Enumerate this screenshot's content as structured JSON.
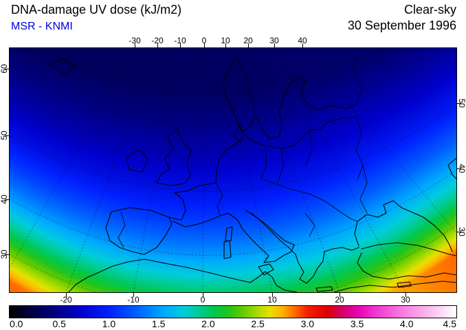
{
  "header": {
    "title": "DNA-damage UV dose (kJ/m2)",
    "source": "MSR - KNMI",
    "source_color": "#0000e0",
    "condition": "Clear-sky",
    "date": "30 September 1996"
  },
  "chart_data": {
    "type": "heatmap",
    "title": "DNA-damage UV dose (kJ/m2)",
    "subtitle": "MSR - KNMI",
    "condition": "Clear-sky",
    "date": "30 September 1996",
    "units": "kJ/m2",
    "region": "Europe / North Africa satellite view",
    "legend_position": "bottom",
    "grid": "dotted graticule, 10 degree spacing",
    "axes": {
      "top_lon_labels": [
        "-30",
        "-20",
        "-10",
        "0",
        "10",
        "20",
        "30",
        "40"
      ],
      "bottom_lon_labels": [
        "-20",
        "-10",
        "0",
        "10",
        "20",
        "30"
      ],
      "left_lat_labels": [
        "60",
        "50",
        "40",
        "30"
      ],
      "right_lat_labels": [
        "50",
        "40",
        "30"
      ]
    },
    "colorbar": {
      "min": 0.0,
      "max": 4.5,
      "tick_labels": [
        "0.0",
        "0.5",
        "1.0",
        "1.5",
        "2.0",
        "2.5",
        "3.0",
        "3.5",
        "4.0",
        "4.5"
      ],
      "stops": [
        [
          0.0,
          "#000000"
        ],
        [
          0.35,
          "#000066"
        ],
        [
          0.7,
          "#0000cc"
        ],
        [
          1.0,
          "#0022ff"
        ],
        [
          1.3,
          "#0066ff"
        ],
        [
          1.55,
          "#00aaff"
        ],
        [
          1.75,
          "#00ccdd"
        ],
        [
          1.9,
          "#00cc99"
        ],
        [
          2.05,
          "#00c853"
        ],
        [
          2.2,
          "#22c41e"
        ],
        [
          2.35,
          "#66cc00"
        ],
        [
          2.5,
          "#aadd00"
        ],
        [
          2.62,
          "#e8e000"
        ],
        [
          2.75,
          "#ffb300"
        ],
        [
          2.88,
          "#ff6600"
        ],
        [
          3.0,
          "#f42000"
        ],
        [
          3.2,
          "#e00000"
        ],
        [
          3.35,
          "#d4006a"
        ],
        [
          3.5,
          "#e800b0"
        ],
        [
          3.7,
          "#f23ad2"
        ],
        [
          3.95,
          "#f97ae0"
        ],
        [
          4.2,
          "#fbb5ec"
        ],
        [
          4.5,
          "#ffffff"
        ]
      ]
    },
    "field": {
      "description": "Approximate clear-sky DNA-damage UV dose (kJ/m2) read from the map colors; rows = latitudes, cols = longitudes",
      "lats": [
        65,
        60,
        55,
        50,
        45,
        40,
        35,
        30,
        25
      ],
      "lons": [
        -40,
        -30,
        -20,
        -10,
        0,
        10,
        20,
        30,
        40
      ],
      "values": [
        [
          0.32,
          0.32,
          0.32,
          0.33,
          0.33,
          0.33,
          0.34,
          0.35,
          0.36
        ],
        [
          0.44,
          0.44,
          0.45,
          0.45,
          0.46,
          0.47,
          0.48,
          0.5,
          0.52
        ],
        [
          0.6,
          0.6,
          0.61,
          0.62,
          0.62,
          0.64,
          0.66,
          0.68,
          0.7
        ],
        [
          0.84,
          0.84,
          0.84,
          0.85,
          0.86,
          0.87,
          0.89,
          0.92,
          0.95
        ],
        [
          1.15,
          1.14,
          1.13,
          1.13,
          1.14,
          1.16,
          1.18,
          1.21,
          1.25
        ],
        [
          1.52,
          1.5,
          1.48,
          1.47,
          1.48,
          1.5,
          1.52,
          1.56,
          1.6
        ],
        [
          1.96,
          1.92,
          1.88,
          1.86,
          1.86,
          1.87,
          1.84,
          1.88,
          1.95
        ],
        [
          2.45,
          2.4,
          2.33,
          2.28,
          2.26,
          2.26,
          2.24,
          2.3,
          2.4
        ],
        [
          2.98,
          2.9,
          2.8,
          2.72,
          2.68,
          2.66,
          2.7,
          2.8,
          2.92
        ]
      ]
    }
  }
}
